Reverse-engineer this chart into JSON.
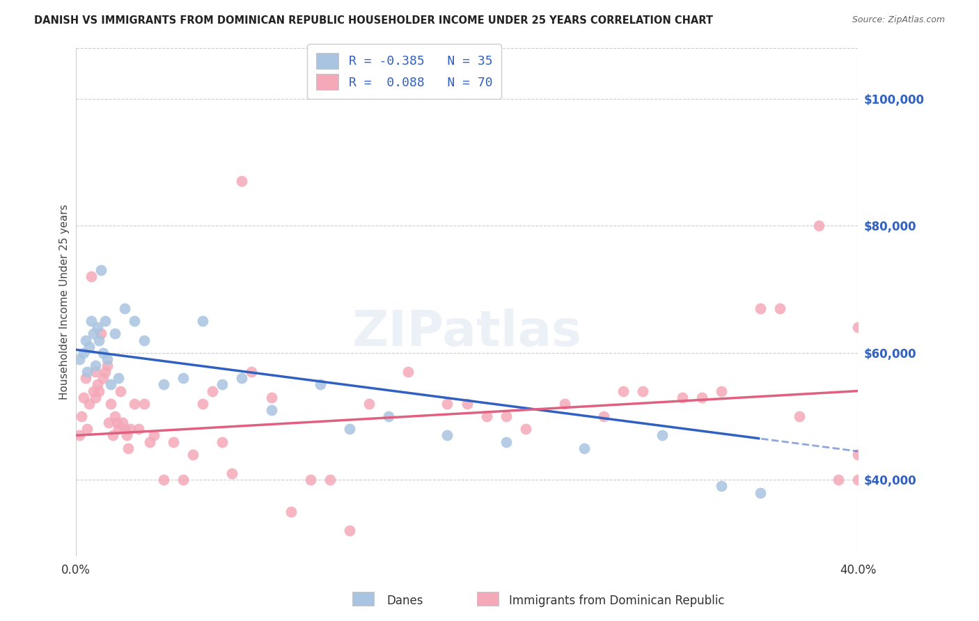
{
  "title": "DANISH VS IMMIGRANTS FROM DOMINICAN REPUBLIC HOUSEHOLDER INCOME UNDER 25 YEARS CORRELATION CHART",
  "source": "Source: ZipAtlas.com",
  "ylabel": "Householder Income Under 25 years",
  "legend_danes_R": "R = -0.385",
  "legend_danes_N": "N = 35",
  "legend_dr_R": "R =  0.088",
  "legend_dr_N": "N = 70",
  "legend_danes_label": "Danes",
  "legend_dr_label": "Immigrants from Dominican Republic",
  "xlim": [
    0.0,
    40.0
  ],
  "ylim": [
    28000,
    108000
  ],
  "yticks": [
    40000,
    60000,
    80000,
    100000
  ],
  "ytick_labels": [
    "$40,000",
    "$60,000",
    "$80,000",
    "$100,000"
  ],
  "xticks": [
    0.0,
    5.0,
    10.0,
    15.0,
    20.0,
    25.0,
    30.0,
    35.0,
    40.0
  ],
  "background_color": "#ffffff",
  "grid_color": "#cccccc",
  "danes_color": "#a8c4e0",
  "dr_color": "#f4a8b8",
  "danes_line_color": "#3060c0",
  "dr_line_color": "#e06080",
  "title_color": "#222222",
  "right_axis_color": "#3060c0",
  "danes_scatter_x": [
    0.2,
    0.4,
    0.5,
    0.6,
    0.7,
    0.8,
    0.9,
    1.0,
    1.1,
    1.2,
    1.3,
    1.4,
    1.5,
    1.6,
    1.8,
    2.0,
    2.2,
    2.5,
    3.0,
    3.5,
    4.5,
    5.5,
    6.5,
    7.5,
    8.5,
    10.0,
    12.5,
    14.0,
    16.0,
    19.0,
    22.0,
    26.0,
    30.0,
    33.0,
    35.0
  ],
  "danes_scatter_y": [
    59000,
    60000,
    62000,
    57000,
    61000,
    65000,
    63000,
    58000,
    64000,
    62000,
    73000,
    60000,
    65000,
    59000,
    55000,
    63000,
    56000,
    67000,
    65000,
    62000,
    55000,
    56000,
    65000,
    55000,
    56000,
    51000,
    55000,
    48000,
    50000,
    47000,
    46000,
    45000,
    47000,
    39000,
    38000
  ],
  "dr_scatter_x": [
    0.2,
    0.3,
    0.4,
    0.5,
    0.6,
    0.7,
    0.8,
    0.9,
    1.0,
    1.0,
    1.1,
    1.2,
    1.3,
    1.4,
    1.5,
    1.6,
    1.7,
    1.8,
    1.9,
    2.0,
    2.1,
    2.2,
    2.3,
    2.4,
    2.5,
    2.6,
    2.7,
    2.8,
    3.0,
    3.2,
    3.5,
    3.8,
    4.0,
    4.5,
    5.0,
    5.5,
    6.0,
    6.5,
    7.0,
    7.5,
    8.0,
    8.5,
    9.0,
    10.0,
    11.0,
    12.0,
    13.0,
    14.0,
    15.0,
    17.0,
    19.0,
    21.0,
    23.0,
    25.0,
    27.0,
    29.0,
    31.0,
    33.0,
    35.0,
    36.0,
    37.0,
    38.0,
    39.0,
    40.0,
    40.0,
    40.0,
    20.0,
    22.0,
    28.0,
    32.0
  ],
  "dr_scatter_y": [
    47000,
    50000,
    53000,
    56000,
    48000,
    52000,
    72000,
    54000,
    57000,
    53000,
    55000,
    54000,
    63000,
    56000,
    57000,
    58000,
    49000,
    52000,
    47000,
    50000,
    49000,
    48000,
    54000,
    49000,
    48000,
    47000,
    45000,
    48000,
    52000,
    48000,
    52000,
    46000,
    47000,
    40000,
    46000,
    40000,
    44000,
    52000,
    54000,
    46000,
    41000,
    87000,
    57000,
    53000,
    35000,
    40000,
    40000,
    32000,
    52000,
    57000,
    52000,
    50000,
    48000,
    52000,
    50000,
    54000,
    53000,
    54000,
    67000,
    67000,
    50000,
    80000,
    40000,
    64000,
    44000,
    40000,
    52000,
    50000,
    54000,
    53000
  ]
}
